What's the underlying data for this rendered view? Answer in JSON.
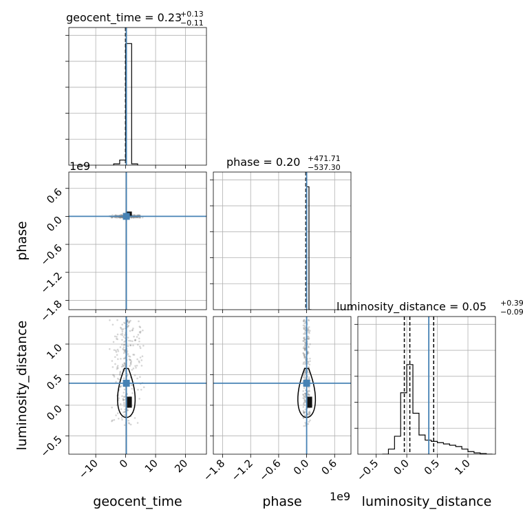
{
  "chart_data": {
    "type": "corner",
    "colors": {
      "truth": "#4682b4",
      "hist": "#000000",
      "grid": "#b0b0b0",
      "scatter": "#888888"
    },
    "parameters": [
      {
        "name": "geocent_time",
        "xlabel": "geocent_time",
        "ticks": [
          -10,
          0,
          10,
          20
        ],
        "range": [
          -19,
          27
        ]
      },
      {
        "name": "phase",
        "xlabel": "phase",
        "ylabel": "phase",
        "ticks": [
          -1.8,
          -1.2,
          -0.6,
          0.0,
          0.6
        ],
        "range": [
          -2.0,
          0.95
        ],
        "offset": "1e9"
      },
      {
        "name": "luminosity_distance",
        "xlabel": "luminosity_distance",
        "ylabel": "luminosity_distance",
        "ticks": [
          -0.5,
          0.0,
          0.5,
          1.0
        ],
        "range": [
          -0.8,
          1.45
        ],
        "offset": "1e9"
      }
    ],
    "titles": [
      {
        "param": "geocent_time",
        "prefix": "geocent_time = 0.23",
        "plus": "+0.13",
        "minus": "−0.11"
      },
      {
        "param": "phase",
        "prefix": "phase = 0.20",
        "plus": "+471.71",
        "minus": "−537.30"
      },
      {
        "param": "luminosity_distance",
        "prefix": "luminosity_distance = 0.05",
        "plus": "+0.39",
        "minus": "−0.09"
      }
    ],
    "truths": {
      "geocent_time": 0.23,
      "phase": 0.0,
      "luminosity_distance": 0.36
    },
    "hist_geocent_time": {
      "edges": [
        -4,
        -2,
        0,
        2,
        4
      ],
      "counts": [
        0.01,
        0.04,
        0.95,
        0.01
      ]
    },
    "hist_phase": {
      "edges": [
        -0.05,
        0.0,
        0.05,
        0.1
      ],
      "counts": [
        0.0,
        0.96,
        0.0
      ]
    },
    "hist_luminosity_distance": {
      "edges": [
        -0.4,
        -0.3,
        -0.2,
        -0.1,
        0.0,
        0.1,
        0.2,
        0.3,
        0.4,
        0.5,
        0.6,
        0.7,
        0.8,
        0.9,
        1.0,
        1.1,
        1.2,
        1.3,
        1.4
      ],
      "counts": [
        0.0,
        0.04,
        0.14,
        0.48,
        0.7,
        0.32,
        0.15,
        0.11,
        0.1,
        0.09,
        0.08,
        0.07,
        0.06,
        0.04,
        0.02,
        0.01,
        0.005,
        0.0
      ]
    },
    "quantiles_luminosity_distance": [
      -0.04,
      0.05,
      0.44
    ]
  }
}
